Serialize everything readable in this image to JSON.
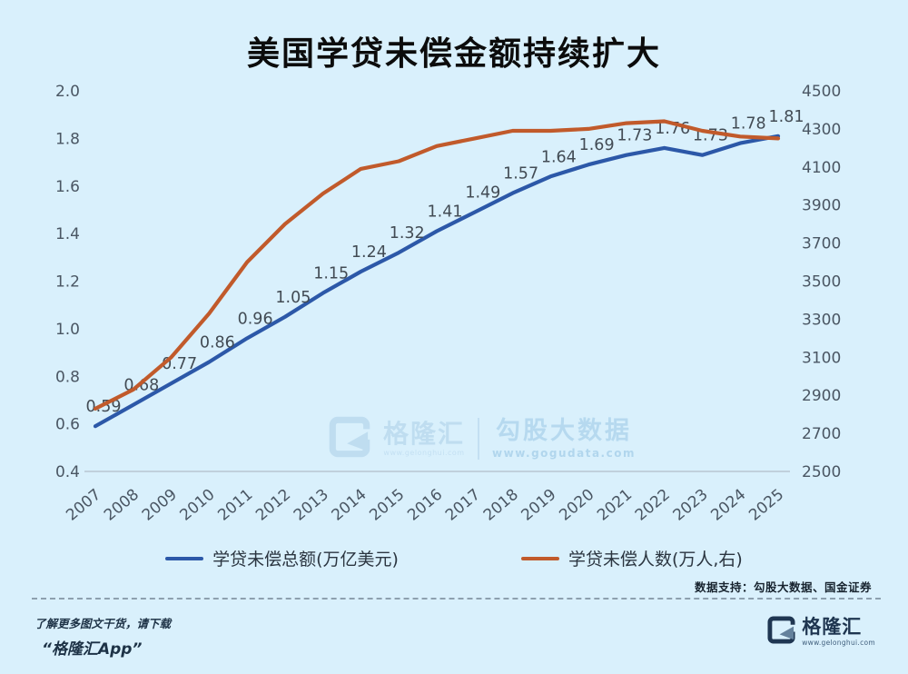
{
  "title": "美国学贷未偿金额持续扩大",
  "chart_data": {
    "type": "line",
    "x": [
      "2007",
      "2008",
      "2009",
      "2010",
      "2011",
      "2012",
      "2013",
      "2014",
      "2015",
      "2016",
      "2017",
      "2018",
      "2019",
      "2020",
      "2021",
      "2022",
      "2023",
      "2024",
      "2025"
    ],
    "series": [
      {
        "name": "学贷未偿总额(万亿美元)",
        "axis": "left",
        "color": "#2c58a8",
        "show_labels": true,
        "values": [
          0.59,
          0.68,
          0.77,
          0.86,
          0.96,
          1.05,
          1.15,
          1.24,
          1.32,
          1.41,
          1.49,
          1.57,
          1.64,
          1.69,
          1.73,
          1.76,
          1.73,
          1.78,
          1.81
        ]
      },
      {
        "name": "学贷未偿人数(万人,右)",
        "axis": "right",
        "color": "#c15a2b",
        "show_labels": false,
        "values": [
          2830,
          2930,
          3100,
          3330,
          3600,
          3800,
          3960,
          4090,
          4130,
          4210,
          4250,
          4290,
          4290,
          4300,
          4330,
          4340,
          4290,
          4260,
          4250
        ]
      }
    ],
    "left_axis": {
      "min": 0.4,
      "max": 2.0,
      "ticks": [
        "2.0",
        "1.8",
        "1.6",
        "1.4",
        "1.2",
        "1.0",
        "0.8",
        "0.6",
        "0.4"
      ]
    },
    "right_axis": {
      "min": 2500,
      "max": 4500,
      "ticks": [
        "4500",
        "4300",
        "4100",
        "3900",
        "3700",
        "3500",
        "3300",
        "3100",
        "2900",
        "2700",
        "2500"
      ]
    },
    "grid": false,
    "legend_position": "bottom"
  },
  "watermark": {
    "brand": "格隆汇",
    "brand_url": "www.gelonghui.com",
    "partner": "勾股大数据",
    "partner_url": "www.gogudata.com"
  },
  "source_note": "数据支持：勾股大数据、国金证券",
  "footer": {
    "promo_line1": "了解更多图文干货，请下载",
    "promo_line2": "“格隆汇App”",
    "brand": "格隆汇",
    "brand_url": "www.gelonghui.com"
  }
}
